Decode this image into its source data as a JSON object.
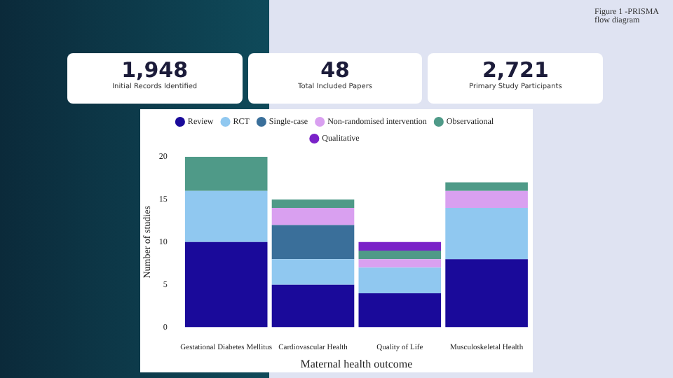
{
  "chart_data": {
    "type": "bar",
    "stacked": true,
    "xlabel": "Maternal health outcome",
    "ylabel": "Number of studies",
    "categories": [
      "Gestational Diabetes Mellitus",
      "Cardiovascular Health",
      "Quality of Life",
      "Musculoskeletal Health"
    ],
    "series": [
      {
        "name": "Review",
        "color": "#1a0a9a",
        "values": [
          10,
          5,
          4,
          8
        ]
      },
      {
        "name": "RCT",
        "color": "#90c8f0",
        "values": [
          6,
          3,
          3,
          6
        ]
      },
      {
        "name": "Single-case",
        "color": "#3a6f9a",
        "values": [
          0,
          4,
          0,
          0
        ]
      },
      {
        "name": "Non-randomised intervention",
        "color": "#d9a0f0",
        "values": [
          0,
          2,
          1,
          2
        ]
      },
      {
        "name": "Observational",
        "color": "#4f9a88",
        "values": [
          4,
          1,
          1,
          1
        ]
      },
      {
        "name": "Qualitative",
        "color": "#7a22c8",
        "values": [
          0,
          0,
          1,
          0
        ]
      }
    ],
    "ylim": [
      0,
      20
    ],
    "yticks": [
      0,
      5,
      10,
      15,
      20
    ],
    "grid": false,
    "legend": "top",
    "annotations": [
      "1,948",
      "Initial Records Identified",
      "48",
      "Total Included Papers",
      "2,721",
      "Primary Study Participants",
      "Figure 1 -PRISMA flow diagram"
    ]
  }
}
